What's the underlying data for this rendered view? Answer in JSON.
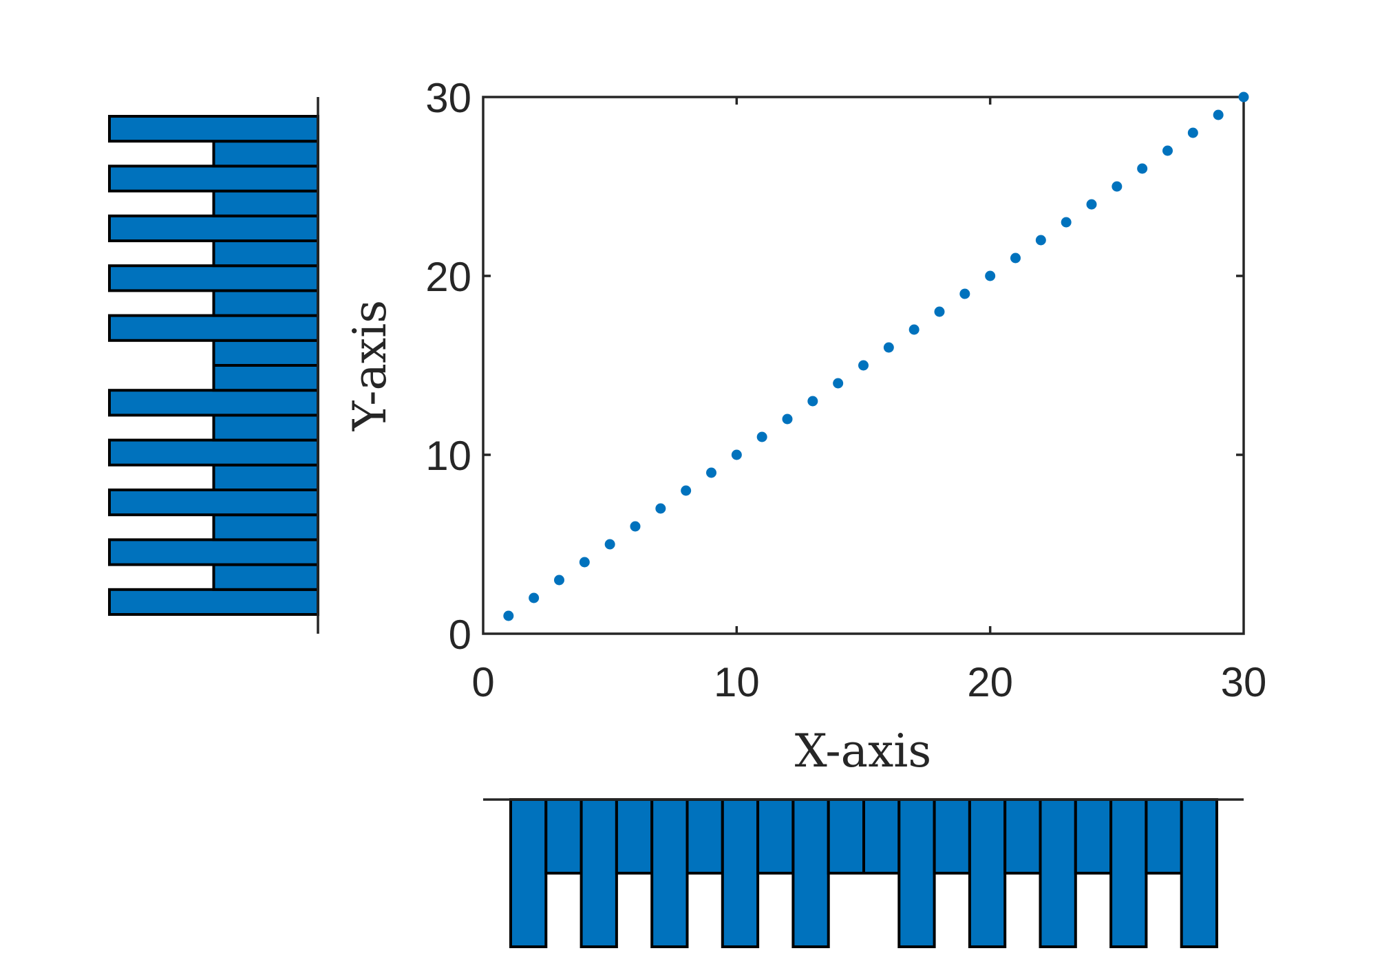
{
  "chart_data": {
    "type": "scatter",
    "title": "",
    "xlabel": "X-axis",
    "ylabel": "Y-axis",
    "xlim": [
      0,
      30
    ],
    "ylim": [
      0,
      30
    ],
    "xticks": [
      0,
      10,
      20,
      30
    ],
    "yticks": [
      0,
      10,
      20,
      30
    ],
    "grid": false,
    "legend": null,
    "colors": {
      "marker": "#0072BD",
      "bar": "#0072BD",
      "axis": "#262626"
    },
    "scatter": {
      "x": [
        1,
        2,
        3,
        4,
        5,
        6,
        7,
        8,
        9,
        10,
        11,
        12,
        13,
        14,
        15,
        16,
        17,
        18,
        19,
        20,
        21,
        22,
        23,
        24,
        25,
        26,
        27,
        28,
        29,
        30
      ],
      "y": [
        1,
        2,
        3,
        4,
        5,
        6,
        7,
        8,
        9,
        10,
        11,
        12,
        13,
        14,
        15,
        16,
        17,
        18,
        19,
        20,
        21,
        22,
        23,
        24,
        25,
        26,
        27,
        28,
        29,
        30
      ]
    },
    "marginal_histograms": {
      "x_histogram": {
        "type": "bar",
        "position": "below",
        "orientation": "downward",
        "bins": 20,
        "counts": [
          2,
          1,
          2,
          1,
          2,
          1,
          2,
          1,
          2,
          1,
          1,
          2,
          1,
          2,
          1,
          2,
          1,
          2,
          1,
          2
        ]
      },
      "y_histogram": {
        "type": "bar",
        "position": "left",
        "orientation": "leftward",
        "bins": 20,
        "counts_bottom_to_top": [
          2,
          1,
          2,
          1,
          2,
          1,
          2,
          1,
          2,
          1,
          1,
          2,
          1,
          2,
          1,
          2,
          1,
          2,
          1,
          2
        ]
      }
    }
  },
  "labels": {
    "xlabel": "X-axis",
    "ylabel": "Y-axis",
    "xticks": [
      "0",
      "10",
      "20",
      "30"
    ],
    "yticks": [
      "0",
      "10",
      "20",
      "30"
    ]
  }
}
